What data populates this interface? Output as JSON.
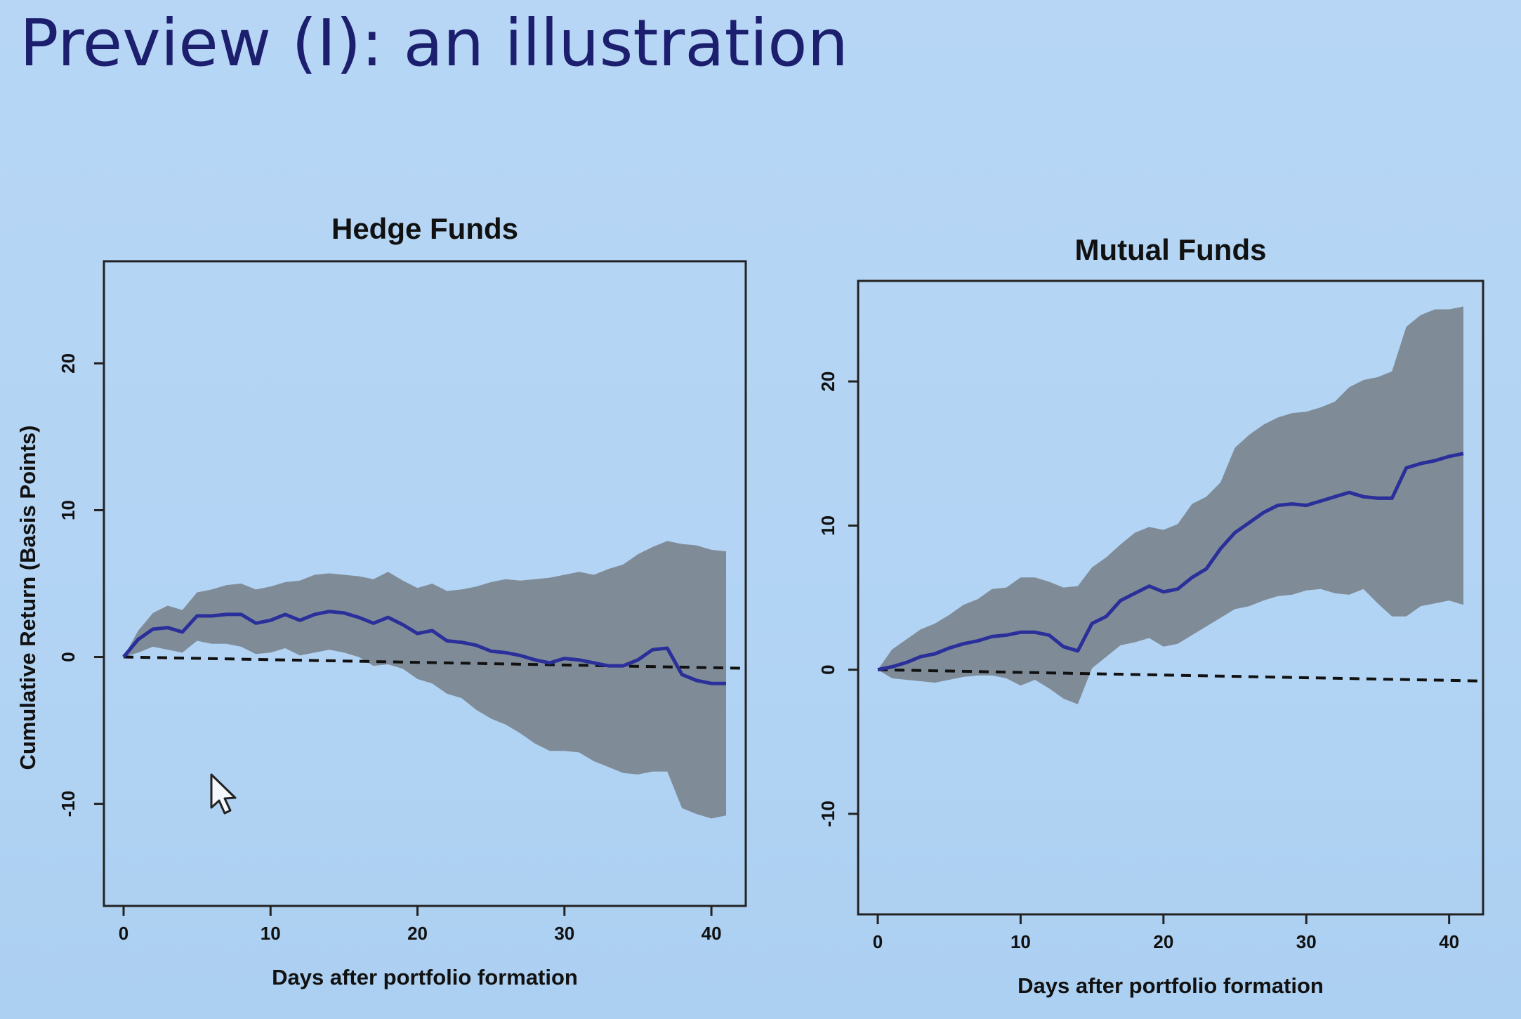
{
  "slide": {
    "title": "Preview (I): an illustration"
  },
  "colors": {
    "background": "#b5d5f4",
    "band": "#7f8c98",
    "line": "#2b2f9a",
    "baseline": "#111111",
    "title": "#1c1e6e"
  },
  "chart_data": [
    {
      "type": "line",
      "title": "Hedge Funds",
      "xlabel": "Days after portfolio formation",
      "ylabel": "Cumulative Return (Basis Points)",
      "xlim": [
        0,
        41
      ],
      "ylim": [
        -16,
        26
      ],
      "x_ticks": [
        0,
        10,
        20,
        30,
        40
      ],
      "y_ticks": [
        -10,
        0,
        10,
        20
      ],
      "x_tick_labels": [
        "0",
        "10",
        "20",
        "30",
        "40"
      ],
      "y_tick_labels": [
        "-10",
        "0",
        "10",
        "20"
      ],
      "grid": false,
      "reference_line": {
        "y": 0,
        "style": "dashed"
      },
      "series": [
        {
          "style": "solid",
          "x": [
            0,
            1,
            2,
            3,
            4,
            5,
            6,
            7,
            8,
            9,
            10,
            11,
            12,
            13,
            14,
            15,
            16,
            17,
            18,
            19,
            20,
            21,
            22,
            23,
            24,
            25,
            26,
            27,
            28,
            29,
            30,
            31,
            32,
            33,
            34,
            35,
            36,
            37,
            38,
            39,
            40,
            41
          ],
          "values": [
            0,
            1.2,
            1.9,
            2.0,
            1.7,
            2.8,
            2.8,
            2.9,
            2.9,
            2.3,
            2.5,
            2.9,
            2.5,
            2.9,
            3.1,
            3.0,
            2.7,
            2.3,
            2.7,
            2.2,
            1.6,
            1.8,
            1.1,
            1.0,
            0.8,
            0.4,
            0.3,
            0.1,
            -0.2,
            -0.4,
            -0.1,
            -0.2,
            -0.4,
            -0.6,
            -0.6,
            -0.2,
            0.5,
            0.6,
            -1.2,
            -1.6,
            -1.8,
            -1.8
          ]
        }
      ],
      "band": {
        "x": [
          0,
          1,
          2,
          3,
          4,
          5,
          6,
          7,
          8,
          9,
          10,
          11,
          12,
          13,
          14,
          15,
          16,
          17,
          18,
          19,
          20,
          21,
          22,
          23,
          24,
          25,
          26,
          27,
          28,
          29,
          30,
          31,
          32,
          33,
          34,
          35,
          36,
          37,
          38,
          39,
          40,
          41
        ],
        "upper": [
          0,
          1.8,
          3.0,
          3.5,
          3.2,
          4.4,
          4.6,
          4.9,
          5.0,
          4.6,
          4.8,
          5.1,
          5.2,
          5.6,
          5.7,
          5.6,
          5.5,
          5.3,
          5.8,
          5.2,
          4.7,
          5.0,
          4.5,
          4.6,
          4.8,
          5.1,
          5.3,
          5.2,
          5.3,
          5.4,
          5.6,
          5.8,
          5.6,
          6.0,
          6.3,
          7.0,
          7.5,
          7.9,
          7.7,
          7.6,
          7.3,
          7.2
        ],
        "lower": [
          0,
          0.3,
          0.7,
          0.5,
          0.3,
          1.1,
          0.9,
          0.9,
          0.7,
          0.2,
          0.3,
          0.6,
          0.1,
          0.3,
          0.5,
          0.3,
          0.0,
          -0.6,
          -0.5,
          -0.8,
          -1.5,
          -1.8,
          -2.5,
          -2.8,
          -3.6,
          -4.2,
          -4.6,
          -5.2,
          -5.9,
          -6.4,
          -6.4,
          -6.5,
          -7.1,
          -7.5,
          -7.9,
          -8.0,
          -7.8,
          -7.8,
          -10.3,
          -10.7,
          -11.0,
          -10.8
        ]
      }
    },
    {
      "type": "line",
      "title": "Mutual Funds",
      "xlabel": "Days after portfolio formation",
      "ylabel": "",
      "xlim": [
        0,
        41
      ],
      "ylim": [
        -16,
        26
      ],
      "x_ticks": [
        0,
        10,
        20,
        30,
        40
      ],
      "y_ticks": [
        -10,
        0,
        10,
        20
      ],
      "x_tick_labels": [
        "0",
        "10",
        "20",
        "30",
        "40"
      ],
      "y_tick_labels": [
        "-10",
        "0",
        "10",
        "20"
      ],
      "grid": false,
      "reference_line": {
        "y": 0,
        "style": "dashed"
      },
      "series": [
        {
          "style": "solid",
          "x": [
            0,
            1,
            2,
            3,
            4,
            5,
            6,
            7,
            8,
            9,
            10,
            11,
            12,
            13,
            14,
            15,
            16,
            17,
            18,
            19,
            20,
            21,
            22,
            23,
            24,
            25,
            26,
            27,
            28,
            29,
            30,
            31,
            32,
            33,
            34,
            35,
            36,
            37,
            38,
            39,
            40,
            41
          ],
          "values": [
            0,
            0.2,
            0.5,
            0.9,
            1.1,
            1.5,
            1.8,
            2.0,
            2.3,
            2.4,
            2.6,
            2.6,
            2.4,
            1.6,
            1.3,
            3.2,
            3.7,
            4.8,
            5.3,
            5.8,
            5.4,
            5.6,
            6.4,
            7.0,
            8.4,
            9.5,
            10.2,
            10.9,
            11.4,
            11.5,
            11.4,
            11.7,
            12.0,
            12.3,
            12.0,
            11.9,
            11.9,
            14.0,
            14.3,
            14.5,
            14.8,
            15.0
          ]
        }
      ],
      "band": {
        "x": [
          0,
          1,
          2,
          3,
          4,
          5,
          6,
          7,
          8,
          9,
          10,
          11,
          12,
          13,
          14,
          15,
          16,
          17,
          18,
          19,
          20,
          21,
          22,
          23,
          24,
          25,
          26,
          27,
          28,
          29,
          30,
          31,
          32,
          33,
          34,
          35,
          36,
          37,
          38,
          39,
          40,
          41
        ],
        "upper": [
          0,
          1.4,
          2.1,
          2.8,
          3.2,
          3.8,
          4.5,
          4.9,
          5.6,
          5.7,
          6.4,
          6.4,
          6.1,
          5.7,
          5.8,
          7.1,
          7.8,
          8.7,
          9.5,
          9.9,
          9.7,
          10.1,
          11.5,
          12.0,
          13.0,
          15.4,
          16.3,
          17.0,
          17.5,
          17.8,
          17.9,
          18.2,
          18.6,
          19.6,
          20.1,
          20.3,
          20.7,
          23.8,
          24.6,
          25.0,
          25.0,
          25.2
        ],
        "lower": [
          0,
          -0.6,
          -0.7,
          -0.8,
          -0.9,
          -0.7,
          -0.5,
          -0.4,
          -0.4,
          -0.6,
          -1.1,
          -0.7,
          -1.3,
          -2.0,
          -2.4,
          0.1,
          0.9,
          1.7,
          1.9,
          2.2,
          1.6,
          1.8,
          2.4,
          3.0,
          3.6,
          4.2,
          4.4,
          4.8,
          5.1,
          5.2,
          5.5,
          5.6,
          5.3,
          5.2,
          5.6,
          4.6,
          3.7,
          3.7,
          4.4,
          4.6,
          4.8,
          4.5
        ]
      }
    }
  ]
}
